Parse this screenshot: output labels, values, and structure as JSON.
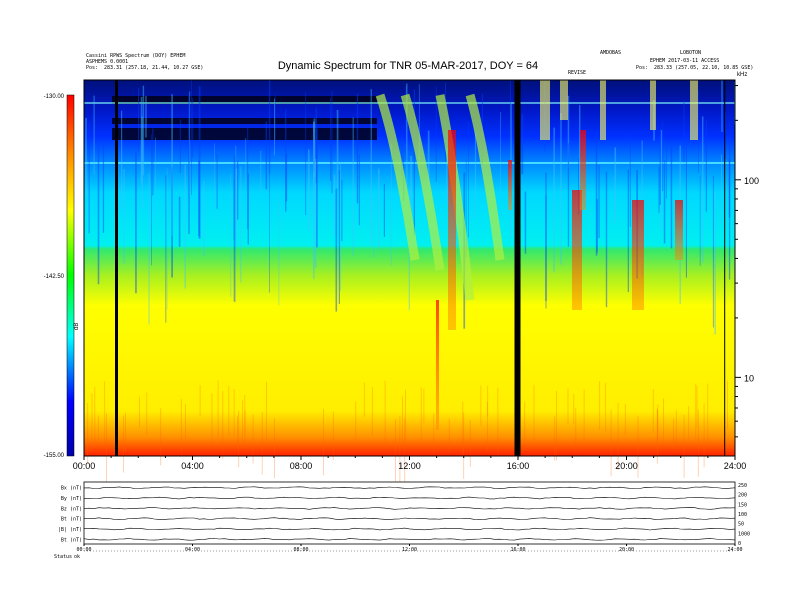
{
  "header": {
    "left_line1": "Cassini RPWS Spectrum (DOY) EPHEM",
    "left_line2": "ASPHEMS 0.0001",
    "left_pos_label": "Pos:",
    "left_pos_value": "283.31 (257.18, 21.44, 10.27 GSE)",
    "right_top_a": "AMDOBAS",
    "right_top_b": "LOBOTON",
    "right_line2": "EPHEM 2017-03-11 ACCESS",
    "right_pos_label": "Pos:",
    "right_pos_value": "283.33 (257.05, 22.10, 10.85 GSE)",
    "small_tag": "REVISE"
  },
  "chart_data": [
    {
      "type": "heatmap",
      "title": "Dynamic Spectrum for TNR 05-MAR-2017, DOY = 64",
      "colorbar": {
        "ticks": [
          "-130.00",
          "-142.50",
          "-155.00"
        ],
        "label": "dB",
        "range": [
          -155,
          -130
        ],
        "colors": [
          "#0000aa",
          "#0000ff",
          "#00ffff",
          "#00ff00",
          "#ffff00",
          "#ff8800",
          "#ff0000"
        ]
      },
      "x_ticks": [
        "00:00",
        "04:00",
        "08:00",
        "12:00",
        "16:00",
        "20:00",
        "24:00"
      ],
      "x_range_hours": [
        0,
        24
      ],
      "y_scale": "log",
      "y_ticks": [
        "100",
        "10"
      ],
      "y_unit": "kHz",
      "y_range_khz": [
        4,
        320
      ],
      "data_gaps_hours": [
        1.2,
        15.98
      ]
    },
    {
      "type": "line",
      "title": "",
      "panel_labels": [
        "Bx (nT)",
        "By (nT)",
        "Bz (nT)",
        "Bt (nT)",
        "|B| (nT)",
        "Bt (nT)"
      ],
      "right_labels": [
        "250",
        "200",
        "150",
        "100",
        "50",
        "1000",
        "0"
      ],
      "x_ticks": [
        "00:00",
        "04:00",
        "08:00",
        "12:00",
        "16:00",
        "20:00",
        "24:00"
      ],
      "footer_label": "Status",
      "footer_value": "ok"
    }
  ]
}
